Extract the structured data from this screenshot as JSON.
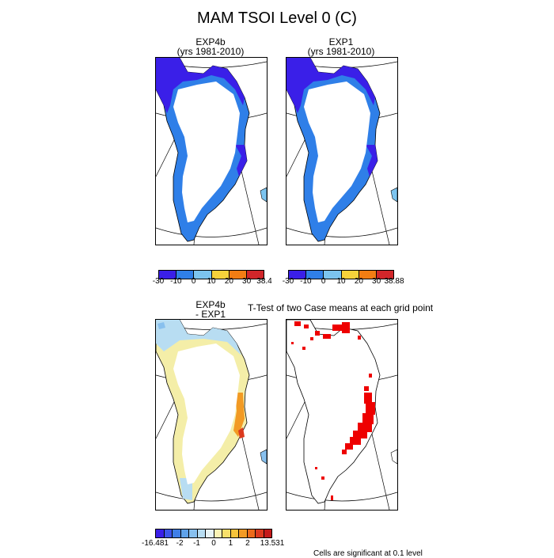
{
  "title": "MAM TSOI Level 0 (C)",
  "panels": [
    {
      "title_line1": "EXP4b",
      "title_line2": "(yrs 1981-2010)"
    },
    {
      "title_line1": "EXP1",
      "title_line2": "(yrs 1981-2010)"
    },
    {
      "title_line1": "EXP4b",
      "title_line2": "- EXP1"
    },
    {
      "title_line1": "",
      "title_line2": ""
    }
  ],
  "ttest_title": "T-Test of two Case means at each grid point",
  "significance_note": "Cells are significant at 0.1 level",
  "colorbars": {
    "exp4b": {
      "colors": [
        "#3a1fe8",
        "#2f7fe8",
        "#7cc4ef",
        "#f6d23b",
        "#f27d13",
        "#d1262a"
      ],
      "labels": [
        "-30",
        "-10",
        "0",
        "10",
        "20",
        "30",
        "38.4"
      ]
    },
    "exp1": {
      "colors": [
        "#3a1fe8",
        "#2f7fe8",
        "#7cc4ef",
        "#f6d23b",
        "#f27d13",
        "#d1262a"
      ],
      "labels": [
        "-30",
        "-10",
        "0",
        "10",
        "20",
        "30",
        "38.88"
      ]
    },
    "diff": {
      "colors": [
        "#3a1fe8",
        "#3d55ea",
        "#3f7fe8",
        "#5fa2ea",
        "#88c0ee",
        "#b8ddf2",
        "#e8f3f5",
        "#fbf2b5",
        "#f9e06a",
        "#f6c43b",
        "#f29a24",
        "#ec6a1a",
        "#dc3a1e",
        "#c41a1a"
      ],
      "labels": [
        "-16.481",
        "-2",
        "-1",
        "0",
        "1",
        "2",
        "13.531"
      ]
    }
  },
  "colors": {
    "ice_sheet": "#ffffff",
    "significant_cells": "#ee0000"
  }
}
